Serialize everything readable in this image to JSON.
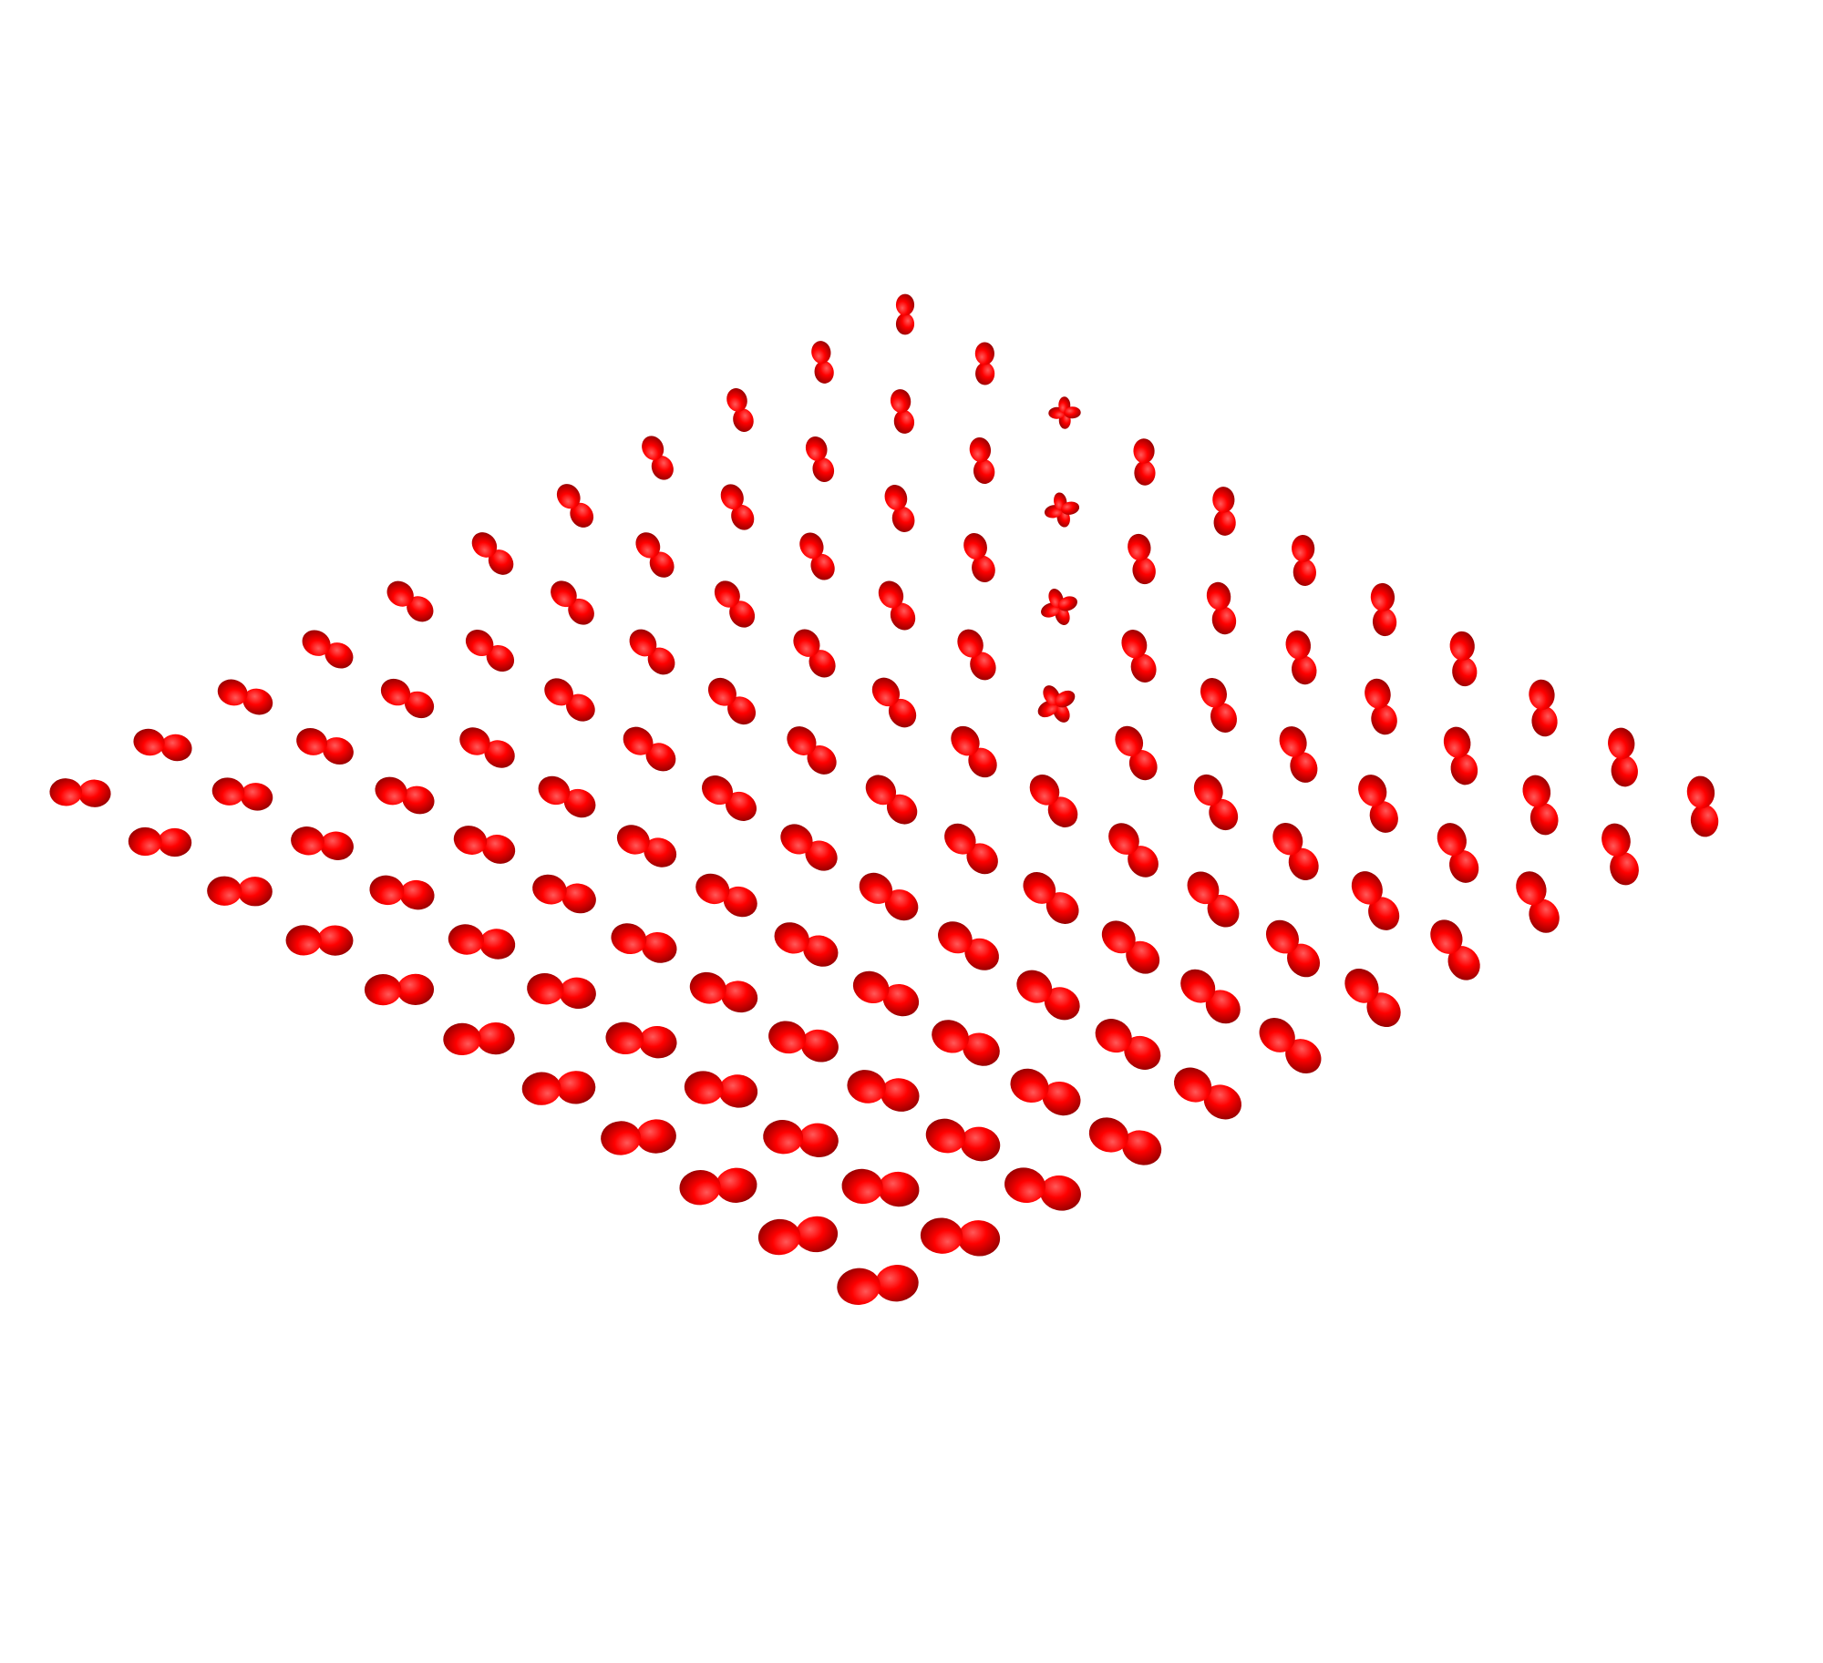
{
  "scene": {
    "background_color": "#ffffff",
    "glyph_color": "#ff0000",
    "glyph_shade_color": "#8a0000",
    "grid_rows": 11,
    "grid_cols": 11,
    "glyph_shape": "lobed-peanut",
    "description_labels": []
  }
}
